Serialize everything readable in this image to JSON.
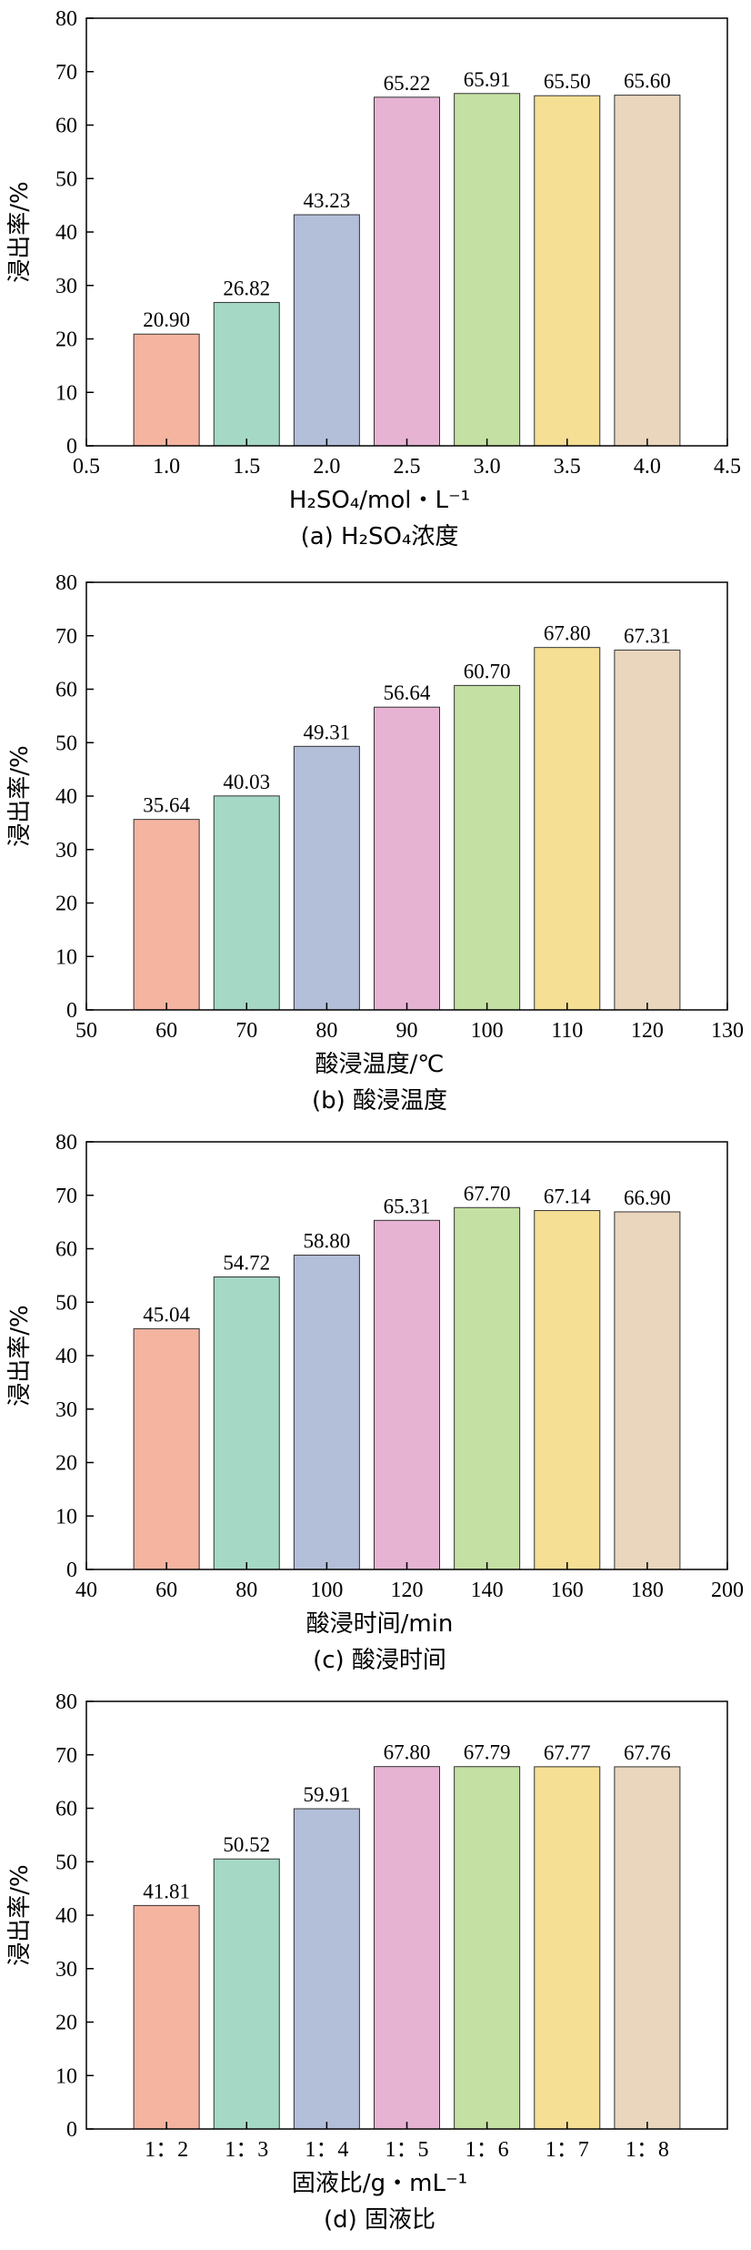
{
  "colors": [
    "#f4b4a0",
    "#a5d8c5",
    "#b3bfd9",
    "#e6b3d3",
    "#c5e0a3",
    "#f5df94",
    "#ead6bd"
  ],
  "chart_data": [
    {
      "type": "bar",
      "caption": "(a) H₂SO₄浓度",
      "xlabel": "H₂SO₄/mol・L⁻¹",
      "ylabel": "浸出率/%",
      "x_numeric": true,
      "xlim": [
        0.5,
        4.5
      ],
      "xticks": [
        0.5,
        1.0,
        1.5,
        2.0,
        2.5,
        3.0,
        3.5,
        4.0,
        4.5
      ],
      "xtick_labels": [
        "0.5",
        "1.0",
        "1.5",
        "2.0",
        "2.5",
        "3.0",
        "3.5",
        "4.0",
        "4.5"
      ],
      "ylim": [
        0,
        80
      ],
      "yticks": [
        0,
        10,
        20,
        30,
        40,
        50,
        60,
        70,
        80
      ],
      "x": [
        1.0,
        1.5,
        2.0,
        2.5,
        3.0,
        3.5,
        4.0
      ],
      "values": [
        20.9,
        26.82,
        43.23,
        65.22,
        65.91,
        65.5,
        65.6
      ],
      "value_labels": [
        "20.90",
        "26.82",
        "43.23",
        "65.22",
        "65.91",
        "65.50",
        "65.60"
      ]
    },
    {
      "type": "bar",
      "caption": "(b) 酸浸温度",
      "xlabel": "酸浸温度/℃",
      "ylabel": "浸出率/%",
      "x_numeric": true,
      "xlim": [
        50,
        130
      ],
      "xticks": [
        50,
        60,
        70,
        80,
        90,
        100,
        110,
        120,
        130
      ],
      "xtick_labels": [
        "50",
        "60",
        "70",
        "80",
        "90",
        "100",
        "110",
        "120",
        "130"
      ],
      "ylim": [
        0,
        80
      ],
      "yticks": [
        0,
        10,
        20,
        30,
        40,
        50,
        60,
        70,
        80
      ],
      "x": [
        60,
        70,
        80,
        90,
        100,
        110,
        120
      ],
      "values": [
        35.64,
        40.03,
        49.31,
        56.64,
        60.7,
        67.8,
        67.31
      ],
      "value_labels": [
        "35.64",
        "40.03",
        "49.31",
        "56.64",
        "60.70",
        "67.80",
        "67.31"
      ]
    },
    {
      "type": "bar",
      "caption": "(c) 酸浸时间",
      "xlabel": "酸浸时间/min",
      "ylabel": "浸出率/%",
      "x_numeric": true,
      "xlim": [
        40,
        200
      ],
      "xticks": [
        40,
        60,
        80,
        100,
        120,
        140,
        160,
        180,
        200
      ],
      "xtick_labels": [
        "40",
        "60",
        "80",
        "100",
        "120",
        "140",
        "160",
        "180",
        "200"
      ],
      "ylim": [
        0,
        80
      ],
      "yticks": [
        0,
        10,
        20,
        30,
        40,
        50,
        60,
        70,
        80
      ],
      "x": [
        60,
        80,
        100,
        120,
        140,
        160,
        180
      ],
      "values": [
        45.04,
        54.72,
        58.8,
        65.31,
        67.7,
        67.14,
        66.9
      ],
      "value_labels": [
        "45.04",
        "54.72",
        "58.80",
        "65.31",
        "67.70",
        "67.14",
        "66.90"
      ]
    },
    {
      "type": "bar",
      "caption": "(d) 固液比",
      "xlabel": "固液比/g・mL⁻¹",
      "ylabel": "浸出率/%",
      "x_numeric": false,
      "categories": [
        "1：2",
        "1：3",
        "1：4",
        "1：5",
        "1：6",
        "1：7",
        "1：8"
      ],
      "ylim": [
        0,
        80
      ],
      "yticks": [
        0,
        10,
        20,
        30,
        40,
        50,
        60,
        70,
        80
      ],
      "values": [
        41.81,
        50.52,
        59.91,
        67.8,
        67.79,
        67.77,
        67.76
      ],
      "value_labels": [
        "41.81",
        "50.52",
        "59.91",
        "67.80",
        "67.79",
        "67.77",
        "67.76"
      ]
    }
  ]
}
